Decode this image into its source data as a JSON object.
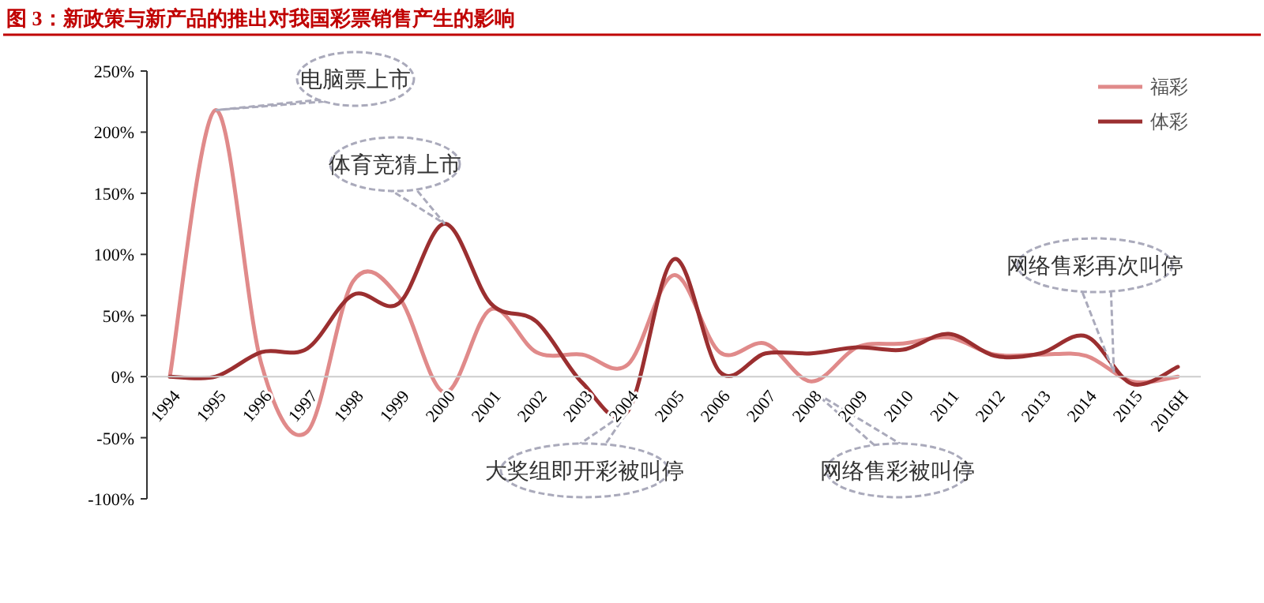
{
  "chart_data": {
    "type": "line",
    "title": "图 3：新政策与新产品的推出对我国彩票销售产生的影响",
    "categories": [
      "1994",
      "1995",
      "1996",
      "1997",
      "1998",
      "1999",
      "2000",
      "2001",
      "2002",
      "2003",
      "2004",
      "2005",
      "2006",
      "2007",
      "2008",
      "2009",
      "2010",
      "2011",
      "2012",
      "2013",
      "2014",
      "2015",
      "2016H"
    ],
    "series": [
      {
        "name": "福彩",
        "color": "#e08a8a",
        "values": [
          0,
          218,
          10,
          -45,
          78,
          65,
          -13,
          55,
          20,
          18,
          10,
          83,
          20,
          27,
          -4,
          24,
          27,
          32,
          18,
          18,
          17,
          -4,
          0
        ]
      },
      {
        "name": "体彩",
        "color": "#9b2f30",
        "values": [
          0,
          0,
          20,
          23,
          67,
          60,
          125,
          60,
          45,
          -5,
          -28,
          96,
          4,
          19,
          19,
          24,
          22,
          35,
          17,
          19,
          33,
          -6,
          8
        ]
      }
    ],
    "ylim": [
      -100,
      250
    ],
    "yticks": [
      {
        "value": -100,
        "label": "-100%"
      },
      {
        "value": -50,
        "label": "-50%"
      },
      {
        "value": 0,
        "label": "0%"
      },
      {
        "value": 50,
        "label": "50%"
      },
      {
        "value": 100,
        "label": "100%"
      },
      {
        "value": 150,
        "label": "150%"
      },
      {
        "value": 200,
        "label": "200%"
      },
      {
        "value": 250,
        "label": "250%"
      }
    ],
    "grid": false,
    "legend": "top right",
    "marker": "none",
    "line_style": "solid",
    "annotations": [
      {
        "text": "电脑票上市",
        "x": "1995",
        "y": 218
      },
      {
        "text": "体育竞猜上市",
        "x": "2000",
        "y": 125
      },
      {
        "text": "大奖组即开彩被叫停",
        "x": "2004",
        "y": -28
      },
      "网络售彩被叫停",
      "网络售彩再次叫停"
    ]
  }
}
